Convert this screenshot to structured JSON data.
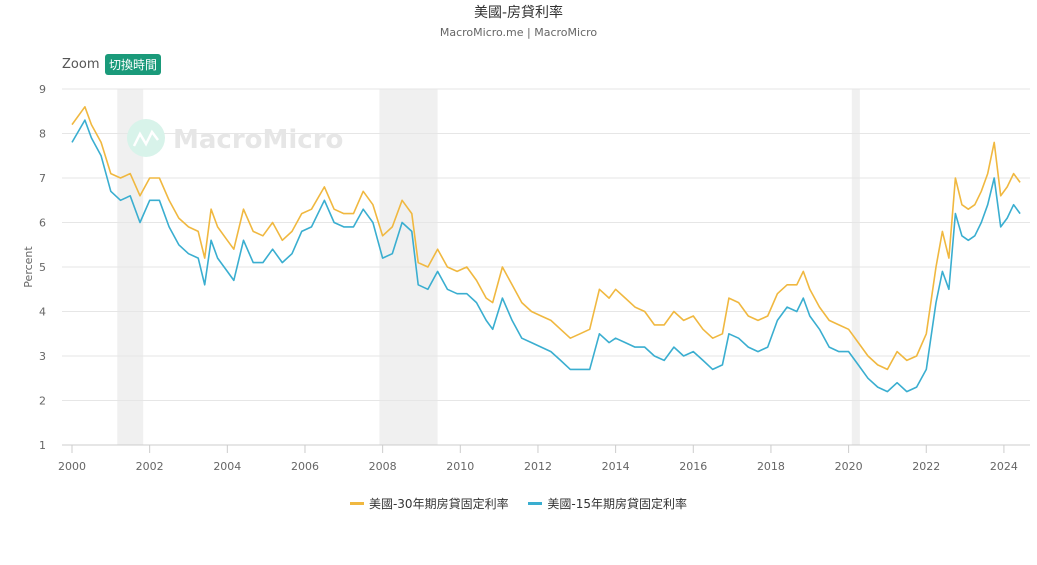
{
  "chart_data": {
    "type": "line",
    "title": "美國-房貸利率",
    "subtitle": "MacroMicro.me | MacroMicro",
    "ylabel": "Percent",
    "xlabel": "",
    "ylim": [
      1,
      9
    ],
    "yticks": [
      "1",
      "2",
      "3",
      "4",
      "5",
      "6",
      "7",
      "8",
      "9"
    ],
    "xlim": [
      "2000-01",
      "2024-09"
    ],
    "xticks": [
      "2000",
      "2002",
      "2004",
      "2006",
      "2008",
      "2010",
      "2012",
      "2014",
      "2016",
      "2018",
      "2020",
      "2022",
      "2024"
    ],
    "grid": true,
    "legend_position": "bottom",
    "recessions": [
      [
        "2001-03",
        "2001-11"
      ],
      [
        "2007-12",
        "2009-06"
      ],
      [
        "2020-02",
        "2020-04"
      ]
    ],
    "x": [
      "2000-01",
      "2000-05",
      "2000-07",
      "2000-10",
      "2001-01",
      "2001-04",
      "2001-07",
      "2001-10",
      "2002-01",
      "2002-04",
      "2002-07",
      "2002-10",
      "2003-01",
      "2003-04",
      "2003-06",
      "2003-08",
      "2003-10",
      "2004-01",
      "2004-03",
      "2004-06",
      "2004-09",
      "2004-12",
      "2005-03",
      "2005-06",
      "2005-09",
      "2005-12",
      "2006-03",
      "2006-07",
      "2006-10",
      "2007-01",
      "2007-04",
      "2007-07",
      "2007-10",
      "2008-01",
      "2008-04",
      "2008-07",
      "2008-10",
      "2008-12",
      "2009-03",
      "2009-06",
      "2009-09",
      "2009-12",
      "2010-03",
      "2010-06",
      "2010-09",
      "2010-11",
      "2011-02",
      "2011-05",
      "2011-08",
      "2011-11",
      "2012-02",
      "2012-05",
      "2012-08",
      "2012-11",
      "2013-02",
      "2013-05",
      "2013-08",
      "2013-11",
      "2014-01",
      "2014-04",
      "2014-07",
      "2014-10",
      "2015-01",
      "2015-04",
      "2015-07",
      "2015-10",
      "2016-01",
      "2016-04",
      "2016-07",
      "2016-10",
      "2016-12",
      "2017-03",
      "2017-06",
      "2017-09",
      "2017-12",
      "2018-03",
      "2018-06",
      "2018-09",
      "2018-11",
      "2019-01",
      "2019-04",
      "2019-07",
      "2019-10",
      "2020-01",
      "2020-04",
      "2020-07",
      "2020-10",
      "2021-01",
      "2021-04",
      "2021-07",
      "2021-10",
      "2022-01",
      "2022-04",
      "2022-06",
      "2022-08",
      "2022-10",
      "2022-12",
      "2023-02",
      "2023-04",
      "2023-06",
      "2023-08",
      "2023-10",
      "2023-12",
      "2024-02",
      "2024-04",
      "2024-06"
    ],
    "series": [
      {
        "name": "美國-30年期房貸固定利率",
        "color": "#f0b840",
        "values": [
          8.2,
          8.6,
          8.2,
          7.8,
          7.1,
          7.0,
          7.1,
          6.6,
          7.0,
          7.0,
          6.5,
          6.1,
          5.9,
          5.8,
          5.2,
          6.3,
          5.9,
          5.6,
          5.4,
          6.3,
          5.8,
          5.7,
          6.0,
          5.6,
          5.8,
          6.2,
          6.3,
          6.8,
          6.3,
          6.2,
          6.2,
          6.7,
          6.4,
          5.7,
          5.9,
          6.5,
          6.2,
          5.1,
          5.0,
          5.4,
          5.0,
          4.9,
          5.0,
          4.7,
          4.3,
          4.2,
          5.0,
          4.6,
          4.2,
          4.0,
          3.9,
          3.8,
          3.6,
          3.4,
          3.5,
          3.6,
          4.5,
          4.3,
          4.5,
          4.3,
          4.1,
          4.0,
          3.7,
          3.7,
          4.0,
          3.8,
          3.9,
          3.6,
          3.4,
          3.5,
          4.3,
          4.2,
          3.9,
          3.8,
          3.9,
          4.4,
          4.6,
          4.6,
          4.9,
          4.5,
          4.1,
          3.8,
          3.7,
          3.6,
          3.3,
          3.0,
          2.8,
          2.7,
          3.1,
          2.9,
          3.0,
          3.5,
          5.0,
          5.8,
          5.2,
          7.0,
          6.4,
          6.3,
          6.4,
          6.7,
          7.1,
          7.8,
          6.6,
          6.8,
          7.1,
          6.9
        ]
      },
      {
        "name": "美國-15年期房貸固定利率",
        "color": "#3aaed0",
        "values": [
          7.8,
          8.3,
          7.9,
          7.5,
          6.7,
          6.5,
          6.6,
          6.0,
          6.5,
          6.5,
          5.9,
          5.5,
          5.3,
          5.2,
          4.6,
          5.6,
          5.2,
          4.9,
          4.7,
          5.6,
          5.1,
          5.1,
          5.4,
          5.1,
          5.3,
          5.8,
          5.9,
          6.5,
          6.0,
          5.9,
          5.9,
          6.3,
          6.0,
          5.2,
          5.3,
          6.0,
          5.8,
          4.6,
          4.5,
          4.9,
          4.5,
          4.4,
          4.4,
          4.2,
          3.8,
          3.6,
          4.3,
          3.8,
          3.4,
          3.3,
          3.2,
          3.1,
          2.9,
          2.7,
          2.7,
          2.7,
          3.5,
          3.3,
          3.4,
          3.3,
          3.2,
          3.2,
          3.0,
          2.9,
          3.2,
          3.0,
          3.1,
          2.9,
          2.7,
          2.8,
          3.5,
          3.4,
          3.2,
          3.1,
          3.2,
          3.8,
          4.1,
          4.0,
          4.3,
          3.9,
          3.6,
          3.2,
          3.1,
          3.1,
          2.8,
          2.5,
          2.3,
          2.2,
          2.4,
          2.2,
          2.3,
          2.7,
          4.2,
          4.9,
          4.5,
          6.2,
          5.7,
          5.6,
          5.7,
          6.0,
          6.4,
          7.0,
          5.9,
          6.1,
          6.4,
          6.2
        ]
      }
    ]
  },
  "toolbar": {
    "zoom_label": "Zoom",
    "switch_time_button": "切換時間"
  },
  "watermark": {
    "text": "MacroMicro",
    "icon": "macromicro-logo-icon"
  }
}
